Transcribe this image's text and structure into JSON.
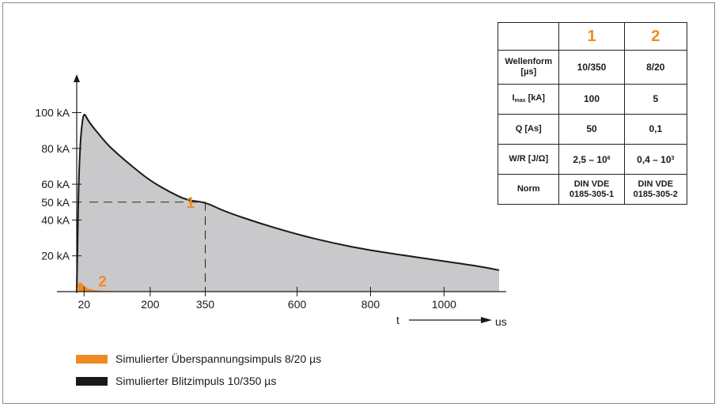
{
  "chart_data": {
    "type": "area",
    "y_ticks": [
      {
        "value": 20,
        "label": "20 kA"
      },
      {
        "value": 40,
        "label": "40 kA"
      },
      {
        "value": 50,
        "label": "50 kA"
      },
      {
        "value": 60,
        "label": "60 kA"
      },
      {
        "value": 80,
        "label": "80 kA"
      },
      {
        "value": 100,
        "label": "100 kA"
      }
    ],
    "x_ticks": [
      {
        "value": 20,
        "label": "20"
      },
      {
        "value": 200,
        "label": "200"
      },
      {
        "value": 350,
        "label": "350"
      },
      {
        "value": 600,
        "label": "600"
      },
      {
        "value": 800,
        "label": "800"
      },
      {
        "value": 1000,
        "label": "1000"
      }
    ],
    "xlim": [
      0,
      1150
    ],
    "ylim": [
      0,
      110
    ],
    "xlabel": "t",
    "xunit": "us",
    "series": [
      {
        "name": "Simulierter Blitzimpuls 10/350 µs",
        "color": "#1a1a1a",
        "fill": "#c9c9cb",
        "x": [
          0,
          5,
          10,
          15,
          20,
          30,
          40,
          60,
          80,
          100,
          150,
          200,
          250,
          300,
          350,
          400,
          500,
          600,
          700,
          800,
          900,
          1000,
          1100,
          1150
        ],
        "y": [
          0,
          60,
          84,
          95,
          100,
          96,
          93,
          88,
          83,
          79,
          70,
          62,
          56,
          51,
          50,
          45,
          38,
          32,
          27,
          23,
          20,
          17,
          14,
          12
        ]
      },
      {
        "name": "Simulierter Überspannungsimpuls 8/20 µs",
        "color": "#f08a24",
        "fill": "#f08a24",
        "x": [
          0,
          3,
          5,
          8,
          12,
          16,
          20,
          25,
          30,
          40,
          50,
          60,
          80,
          100
        ],
        "y": [
          0,
          2.5,
          4,
          5,
          4.5,
          3.8,
          3,
          2.2,
          1.5,
          0.9,
          0.5,
          0.3,
          0.1,
          0
        ]
      }
    ],
    "annotations": [
      {
        "text": "1",
        "x": 310,
        "y": 50
      },
      {
        "text": "2",
        "x": 70,
        "y": 6
      }
    ],
    "reference_point": {
      "x": 350,
      "y": 50
    }
  },
  "legend": [
    {
      "label": "Simulierter Überspannungsimpuls 8/20 µs",
      "color": "#f08a24"
    },
    {
      "label": "Simulierter Blitzimpuls 10/350 µs",
      "color": "#1a1a1a"
    }
  ],
  "table": {
    "col_headers": [
      "1",
      "2"
    ],
    "rows": [
      {
        "label_main": "Wellenform",
        "label_line2": "[µs]",
        "c1": "10/350",
        "c2": "8/20"
      },
      {
        "label_main": "I",
        "label_sub": "max",
        "label_rest": " [kA]",
        "c1": "100",
        "c2": "5"
      },
      {
        "label_main": "Q [As]",
        "c1": "50",
        "c2": "0,1"
      },
      {
        "label_main": "W/R [J/Ω]",
        "c1_base": "2,5 – 10",
        "c1_exp": "6",
        "c2_base": "0,4 – 10",
        "c2_exp": "3"
      },
      {
        "label_main": "Norm",
        "c1_line1": "DIN VDE",
        "c1_line2": "0185-305-1",
        "c2_line1": "DIN VDE",
        "c2_line2": "0185-305-2"
      }
    ]
  }
}
